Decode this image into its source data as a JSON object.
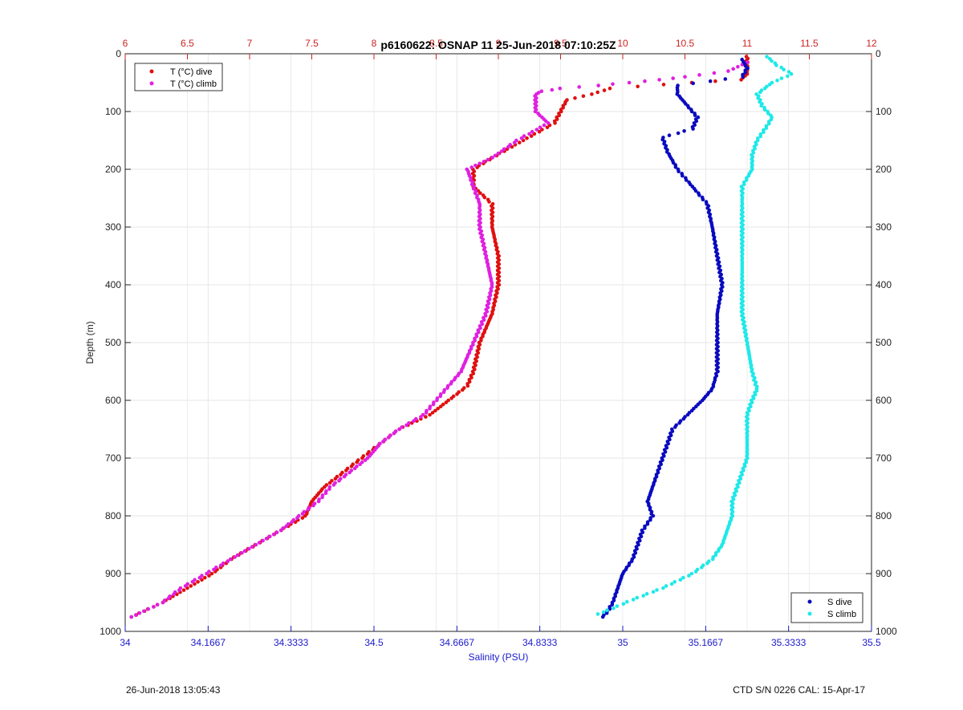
{
  "title": "p6160622: OSNAP 11 25-Jun-2018 07:10:25Z",
  "footer_left": "26-Jun-2018 13:05:43",
  "footer_right": "CTD S/N 0226  CAL: 15-Apr-17",
  "colors": {
    "temp_axis": "#cc2222",
    "sal_axis": "#1a1acc",
    "t_dive": "#e01010",
    "t_climb": "#e020e0",
    "s_dive": "#0a0ac0",
    "s_climb": "#20e8e8"
  },
  "chart_data": {
    "type": "scatter",
    "ylabel": "Depth (m)",
    "ylim": [
      0,
      1000
    ],
    "yticks": [
      "0",
      "100",
      "200",
      "300",
      "400",
      "500",
      "600",
      "700",
      "800",
      "900",
      "1000"
    ],
    "y_reversed": true,
    "x_bottom": {
      "label": "Salinity (PSU)",
      "lim": [
        34,
        35.5
      ],
      "ticks": [
        "34",
        "34.1667",
        "34.3333",
        "34.5",
        "34.6667",
        "34.8333",
        "35",
        "35.1667",
        "35.3333",
        "35.5"
      ]
    },
    "x_top": {
      "label": "",
      "lim": [
        6,
        12
      ],
      "ticks": [
        "6",
        "6.5",
        "7",
        "7.5",
        "8",
        "8.5",
        "9",
        "9.5",
        "10",
        "10.5",
        "11",
        "11.5",
        "12"
      ]
    },
    "grid": true,
    "legend_top_left": [
      "T (°C) dive",
      "T (°C) climb"
    ],
    "legend_bottom_right": [
      "S dive",
      "S climb"
    ],
    "series": [
      {
        "name": "T (°C) dive",
        "axis": "top",
        "depth": [
          5,
          15,
          25,
          35,
          45,
          50,
          60,
          70,
          80,
          100,
          120,
          150,
          180,
          200,
          230,
          260,
          300,
          350,
          400,
          450,
          500,
          550,
          575,
          600,
          625,
          650,
          675,
          700,
          725,
          750,
          775,
          800,
          825,
          850,
          875,
          900,
          925,
          950,
          965,
          975
        ],
        "values": [
          11.0,
          11.0,
          11.0,
          11.0,
          10.95,
          10.55,
          9.9,
          9.75,
          9.55,
          9.5,
          9.45,
          9.2,
          8.95,
          8.8,
          8.8,
          8.95,
          8.95,
          9.0,
          9.0,
          8.95,
          8.85,
          8.8,
          8.75,
          8.6,
          8.45,
          8.2,
          8.05,
          7.9,
          7.75,
          7.6,
          7.5,
          7.45,
          7.25,
          7.05,
          6.85,
          6.7,
          6.5,
          6.3,
          6.15,
          6.05
        ]
      },
      {
        "name": "T (°C) climb",
        "axis": "top",
        "depth": [
          15,
          30,
          40,
          45,
          50,
          55,
          60,
          65,
          70,
          80,
          100,
          120,
          150,
          180,
          200,
          230,
          260,
          300,
          350,
          400,
          450,
          500,
          550,
          575,
          600,
          625,
          650,
          675,
          700,
          725,
          750,
          775,
          800,
          825,
          850,
          875,
          900,
          925,
          950,
          965,
          975
        ],
        "values": [
          11.0,
          10.85,
          10.5,
          10.3,
          10.05,
          9.8,
          9.5,
          9.35,
          9.3,
          9.3,
          9.3,
          9.4,
          9.15,
          8.95,
          8.75,
          8.8,
          8.85,
          8.85,
          8.9,
          8.95,
          8.9,
          8.8,
          8.7,
          8.6,
          8.5,
          8.4,
          8.2,
          8.05,
          7.95,
          7.8,
          7.65,
          7.55,
          7.4,
          7.25,
          7.05,
          6.85,
          6.65,
          6.45,
          6.3,
          6.15,
          6.05
        ]
      },
      {
        "name": "S dive",
        "axis": "bottom",
        "depth": [
          10,
          25,
          40,
          55,
          70,
          90,
          110,
          130,
          145,
          170,
          200,
          230,
          260,
          300,
          350,
          400,
          450,
          500,
          550,
          580,
          600,
          625,
          650,
          675,
          700,
          725,
          750,
          775,
          800,
          825,
          850,
          875,
          900,
          925,
          950,
          965,
          975
        ],
        "values": [
          35.24,
          35.25,
          35.24,
          35.11,
          35.11,
          35.13,
          35.15,
          35.14,
          35.08,
          35.09,
          35.11,
          35.14,
          35.17,
          35.18,
          35.19,
          35.2,
          35.19,
          35.19,
          35.19,
          35.18,
          35.16,
          35.13,
          35.1,
          35.09,
          35.08,
          35.07,
          35.06,
          35.05,
          35.06,
          35.04,
          35.03,
          35.02,
          35.0,
          34.99,
          34.98,
          34.97,
          34.96
        ]
      },
      {
        "name": "S climb",
        "axis": "bottom",
        "depth": [
          5,
          20,
          35,
          50,
          70,
          90,
          110,
          125,
          150,
          175,
          200,
          230,
          260,
          300,
          350,
          400,
          450,
          500,
          550,
          580,
          600,
          625,
          650,
          675,
          700,
          725,
          750,
          775,
          800,
          825,
          850,
          875,
          900,
          925,
          945,
          960,
          970
        ],
        "values": [
          35.29,
          35.31,
          35.34,
          35.3,
          35.27,
          35.28,
          35.3,
          35.29,
          35.27,
          35.26,
          35.26,
          35.24,
          35.24,
          35.24,
          35.24,
          35.24,
          35.24,
          35.25,
          35.26,
          35.27,
          35.26,
          35.25,
          35.25,
          35.25,
          35.25,
          35.24,
          35.23,
          35.22,
          35.22,
          35.21,
          35.2,
          35.18,
          35.14,
          35.08,
          35.02,
          34.98,
          34.95
        ]
      }
    ]
  }
}
